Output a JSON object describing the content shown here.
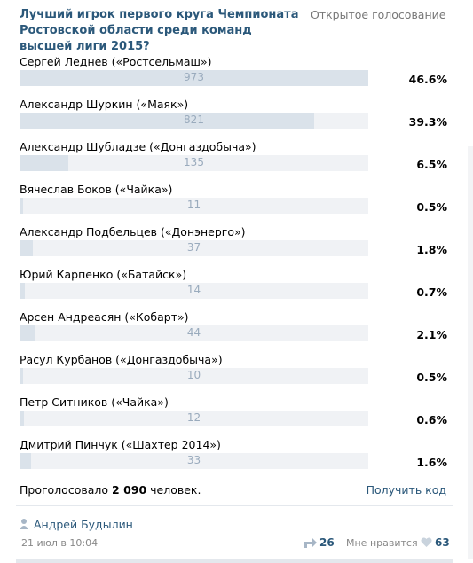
{
  "poll": {
    "title": "Лучший игрок первого круга Чемпионата Ростовской области среди команд высшей лиги 2015?",
    "kind": "Открытое голосование",
    "options": [
      {
        "name": "Сергей Леднев («Ростсельмаш»)",
        "votes": 973,
        "percent": "46.6%"
      },
      {
        "name": "Александр Шуркин («Маяк»)",
        "votes": 821,
        "percent": "39.3%"
      },
      {
        "name": "Александр Шубладзе («Донгаздобыча»)",
        "votes": 135,
        "percent": "6.5%"
      },
      {
        "name": "Вячеслав Боков («Чайка»)",
        "votes": 11,
        "percent": "0.5%"
      },
      {
        "name": "Александр Подбельцев («Донэнерго»)",
        "votes": 37,
        "percent": "1.8%"
      },
      {
        "name": "Юрий Карпенко («Батайск»)",
        "votes": 14,
        "percent": "0.7%"
      },
      {
        "name": "Арсен Андреасян («Кобарт»)",
        "votes": 44,
        "percent": "2.1%"
      },
      {
        "name": "Расул Курбанов («Донгаздобыча»)",
        "votes": 10,
        "percent": "0.5%"
      },
      {
        "name": "Петр Ситников («Чайка»)",
        "votes": 12,
        "percent": "0.6%"
      },
      {
        "name": "Дмитрий Пинчук («Шахтер 2014»)",
        "votes": 33,
        "percent": "1.6%"
      }
    ],
    "total_prefix": "Проголосовало",
    "total": "2 090",
    "total_suffix": "человек.",
    "get_code": "Получить код"
  },
  "post": {
    "author": "Андрей Будылин",
    "date": "21 июл в 10:04",
    "reposts": 26,
    "like_label": "Мне нравится",
    "likes": 63
  }
}
